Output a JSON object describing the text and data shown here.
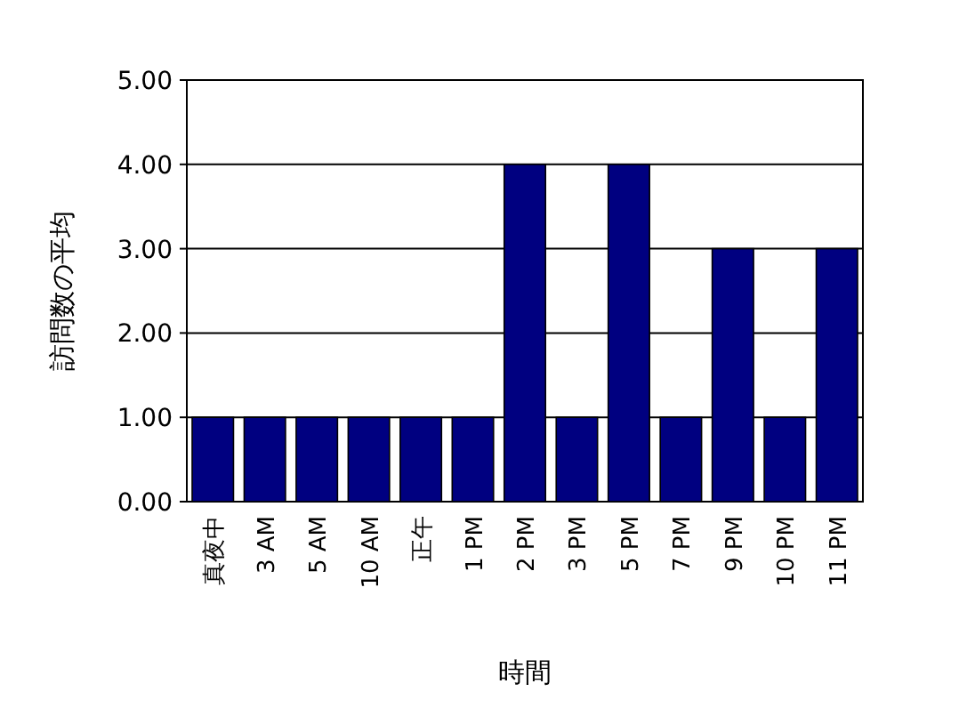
{
  "chart_data": {
    "type": "bar",
    "xlabel": "時間",
    "ylabel": "訪問数の平均",
    "categories": [
      "真夜中",
      "3 AM",
      "5 AM",
      "10 AM",
      "正午",
      "1 PM",
      "2 PM",
      "3 PM",
      "5 PM",
      "7 PM",
      "9 PM",
      "10 PM",
      "11 PM"
    ],
    "values": [
      1,
      1,
      1,
      1,
      1,
      1,
      4,
      1,
      4,
      1,
      3,
      1,
      3
    ],
    "color": "#000080",
    "ylim": [
      0,
      5
    ],
    "yticks": [
      {
        "value": 0,
        "label": "0.00"
      },
      {
        "value": 1,
        "label": "1.00"
      },
      {
        "value": 2,
        "label": "2.00"
      },
      {
        "value": 3,
        "label": "3.00"
      },
      {
        "value": 4,
        "label": "4.00"
      },
      {
        "value": 5,
        "label": "5.00"
      }
    ],
    "grid": "y"
  }
}
